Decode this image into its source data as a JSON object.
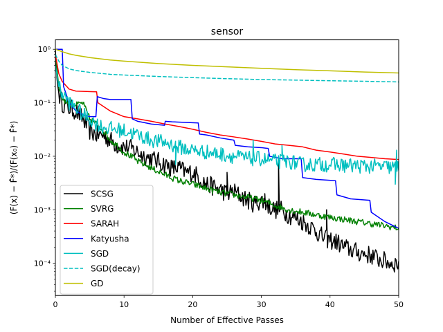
{
  "chart_data": {
    "type": "line",
    "title": "sensor",
    "xlabel": "Number of Effective Passes",
    "ylabel": "(F(x) − F̂*)/(F(x₀) − F̂*)",
    "xlim": [
      0,
      50
    ],
    "ylim": [
      2.5e-05,
      1.5
    ],
    "yscale": "log",
    "grid": false,
    "legend_position": "lower-left",
    "x_ticks": [
      0,
      10,
      20,
      30,
      40,
      50
    ],
    "x_tick_labels": [
      "0",
      "10",
      "20",
      "30",
      "40",
      "50"
    ],
    "y_ticks": [
      0.0001,
      0.001,
      0.01,
      0.1,
      1
    ],
    "y_tick_labels": [
      "10⁻⁴",
      "10⁻³",
      "10⁻²",
      "10⁻¹",
      "10⁰"
    ],
    "series": [
      {
        "name": "SCSG",
        "color": "#000000",
        "dash": "solid",
        "noise": 0.35,
        "points": [
          [
            0,
            1.0
          ],
          [
            0.2,
            0.3
          ],
          [
            0.5,
            0.15
          ],
          [
            1,
            0.1
          ],
          [
            2,
            0.08
          ],
          [
            3,
            0.07
          ],
          [
            4,
            0.05
          ],
          [
            5,
            0.03
          ],
          [
            6,
            0.025
          ],
          [
            7,
            0.025
          ],
          [
            8,
            0.02
          ],
          [
            9,
            0.016
          ],
          [
            10,
            0.015
          ],
          [
            11,
            0.014
          ],
          [
            12,
            0.012
          ],
          [
            13,
            0.01
          ],
          [
            14,
            0.009
          ],
          [
            15,
            0.008
          ],
          [
            16,
            0.007
          ],
          [
            17,
            0.006
          ],
          [
            18,
            0.006
          ],
          [
            19,
            0.005
          ],
          [
            20,
            0.005
          ],
          [
            21,
            0.004
          ],
          [
            22,
            0.003
          ],
          [
            23,
            0.0027
          ],
          [
            24,
            0.0024
          ],
          [
            25,
            0.002
          ],
          [
            26,
            0.0022
          ],
          [
            27,
            0.0018
          ],
          [
            28,
            0.0015
          ],
          [
            29,
            0.0013
          ],
          [
            30,
            0.0015
          ],
          [
            31,
            0.0012
          ],
          [
            32,
            0.001
          ],
          [
            33,
            0.001
          ],
          [
            34,
            0.0008
          ],
          [
            35,
            0.0007
          ],
          [
            36,
            0.0006
          ],
          [
            37,
            0.0005
          ],
          [
            38,
            0.0004
          ],
          [
            39,
            0.0003
          ],
          [
            40,
            0.00027
          ],
          [
            41,
            0.00025
          ],
          [
            42,
            0.0002
          ],
          [
            43,
            0.00018
          ],
          [
            44,
            0.00016
          ],
          [
            45,
            0.00015
          ],
          [
            46,
            0.00014
          ],
          [
            47,
            0.00012
          ],
          [
            48,
            0.00011
          ],
          [
            49,
            0.0001
          ],
          [
            50,
            0.0001
          ]
        ],
        "spikes": [
          [
            32.5,
            0.008
          ],
          [
            25,
            0.005
          ],
          [
            17,
            0.006
          ],
          [
            39.5,
            0.001
          ],
          [
            30.5,
            0.002
          ]
        ]
      },
      {
        "name": "SVRG",
        "color": "#008000",
        "dash": "solid",
        "noise": 0.12,
        "points": [
          [
            0,
            0.8
          ],
          [
            0.5,
            0.2
          ],
          [
            1,
            0.12
          ],
          [
            2,
            0.1
          ],
          [
            3,
            0.09
          ],
          [
            4,
            0.1
          ],
          [
            4.5,
            0.07
          ],
          [
            5,
            0.05
          ],
          [
            6,
            0.04
          ],
          [
            7,
            0.03
          ],
          [
            8,
            0.02
          ],
          [
            9,
            0.016
          ],
          [
            10,
            0.012
          ],
          [
            11,
            0.01
          ],
          [
            12,
            0.008
          ],
          [
            13,
            0.007
          ],
          [
            14,
            0.006
          ],
          [
            16,
            0.0045
          ],
          [
            18,
            0.0035
          ],
          [
            20,
            0.003
          ],
          [
            22,
            0.0025
          ],
          [
            24,
            0.0021
          ],
          [
            26,
            0.0019
          ],
          [
            28,
            0.0017
          ],
          [
            30,
            0.0015
          ],
          [
            32,
            0.0012
          ],
          [
            34,
            0.001
          ],
          [
            36,
            0.0009
          ],
          [
            38,
            0.0008
          ],
          [
            40,
            0.00072
          ],
          [
            42,
            0.00066
          ],
          [
            44,
            0.0006
          ],
          [
            46,
            0.00055
          ],
          [
            48,
            0.0005
          ],
          [
            50,
            0.00045
          ]
        ]
      },
      {
        "name": "SARAH",
        "color": "#ff0000",
        "dash": "solid",
        "noise": 0,
        "points": [
          [
            0,
            0.8
          ],
          [
            0.5,
            0.35
          ],
          [
            1,
            0.25
          ],
          [
            2,
            0.18
          ],
          [
            3,
            0.165
          ],
          [
            6,
            0.16
          ],
          [
            6.2,
            0.1
          ],
          [
            8,
            0.07
          ],
          [
            10,
            0.055
          ],
          [
            12,
            0.05
          ],
          [
            14,
            0.045
          ],
          [
            16,
            0.04
          ],
          [
            18,
            0.036
          ],
          [
            20,
            0.032
          ],
          [
            22,
            0.028
          ],
          [
            24,
            0.025
          ],
          [
            26,
            0.023
          ],
          [
            28,
            0.021
          ],
          [
            30,
            0.019
          ],
          [
            32,
            0.017
          ],
          [
            34,
            0.016
          ],
          [
            36,
            0.015
          ],
          [
            38,
            0.013
          ],
          [
            40,
            0.012
          ],
          [
            42,
            0.011
          ],
          [
            44,
            0.01
          ],
          [
            46,
            0.0095
          ],
          [
            48,
            0.009
          ],
          [
            50,
            0.0087
          ]
        ]
      },
      {
        "name": "Katyusha",
        "color": "#0000ff",
        "dash": "solid",
        "noise": 0,
        "points": [
          [
            0.1,
            1.0
          ],
          [
            1,
            1.0
          ],
          [
            1.2,
            0.2
          ],
          [
            2,
            0.1
          ],
          [
            3,
            0.07
          ],
          [
            4,
            0.06
          ],
          [
            5,
            0.055
          ],
          [
            5.9,
            0.055
          ],
          [
            6.1,
            0.13
          ],
          [
            7,
            0.12
          ],
          [
            8,
            0.115
          ],
          [
            9,
            0.115
          ],
          [
            11,
            0.115
          ],
          [
            11.2,
            0.05
          ],
          [
            12,
            0.045
          ],
          [
            14,
            0.04
          ],
          [
            15.9,
            0.038
          ],
          [
            16,
            0.045
          ],
          [
            17,
            0.044
          ],
          [
            20.8,
            0.042
          ],
          [
            21,
            0.026
          ],
          [
            22,
            0.025
          ],
          [
            24,
            0.022
          ],
          [
            26,
            0.02
          ],
          [
            26.2,
            0.016
          ],
          [
            28,
            0.015
          ],
          [
            30,
            0.0145
          ],
          [
            31,
            0.014
          ],
          [
            31.2,
            0.01
          ],
          [
            33,
            0.009
          ],
          [
            35.8,
            0.009
          ],
          [
            36,
            0.004
          ],
          [
            38,
            0.0037
          ],
          [
            40.8,
            0.0035
          ],
          [
            41,
            0.0019
          ],
          [
            43,
            0.0016
          ],
          [
            45.8,
            0.0015
          ],
          [
            46,
            0.0009
          ],
          [
            48,
            0.0006
          ],
          [
            50,
            0.00045
          ]
        ]
      },
      {
        "name": "SGD",
        "color": "#00bfbf",
        "dash": "solid",
        "noise": 0.28,
        "points": [
          [
            0,
            0.5
          ],
          [
            0.5,
            0.2
          ],
          [
            1,
            0.15
          ],
          [
            2,
            0.1
          ],
          [
            3,
            0.08
          ],
          [
            4,
            0.06
          ],
          [
            5,
            0.05
          ],
          [
            6,
            0.04
          ],
          [
            7,
            0.035
          ],
          [
            8,
            0.033
          ],
          [
            10,
            0.03
          ],
          [
            12,
            0.025
          ],
          [
            14,
            0.02
          ],
          [
            16,
            0.018
          ],
          [
            18,
            0.015
          ],
          [
            20,
            0.013
          ],
          [
            22,
            0.012
          ],
          [
            24,
            0.011
          ],
          [
            26,
            0.01
          ],
          [
            28,
            0.009
          ],
          [
            30,
            0.009
          ],
          [
            32,
            0.008
          ],
          [
            34,
            0.008
          ],
          [
            36,
            0.007
          ],
          [
            38,
            0.007
          ],
          [
            40,
            0.007
          ],
          [
            42,
            0.0068
          ],
          [
            44,
            0.0066
          ],
          [
            46,
            0.0065
          ],
          [
            48,
            0.0063
          ],
          [
            50,
            0.0062
          ]
        ],
        "spikes": [
          [
            49.5,
            0.003
          ],
          [
            49.7,
            0.013
          ],
          [
            28.8,
            0.02
          ],
          [
            33,
            0.016
          ],
          [
            19,
            0.011
          ],
          [
            17.5,
            0.007
          ]
        ]
      },
      {
        "name": "SGD(decay)",
        "color": "#00bfbf",
        "dash": "dashed",
        "noise": 0,
        "points": [
          [
            0,
            0.8
          ],
          [
            0.5,
            0.6
          ],
          [
            1,
            0.5
          ],
          [
            2,
            0.43
          ],
          [
            3,
            0.4
          ],
          [
            5,
            0.37
          ],
          [
            8,
            0.34
          ],
          [
            10,
            0.33
          ],
          [
            15,
            0.31
          ],
          [
            20,
            0.295
          ],
          [
            25,
            0.282
          ],
          [
            30,
            0.272
          ],
          [
            35,
            0.265
          ],
          [
            40,
            0.258
          ],
          [
            45,
            0.252
          ],
          [
            50,
            0.245
          ]
        ]
      },
      {
        "name": "GD",
        "color": "#bfbf00",
        "dash": "solid",
        "noise": 0,
        "points": [
          [
            0,
            1.0
          ],
          [
            1,
            0.9
          ],
          [
            2,
            0.82
          ],
          [
            3,
            0.77
          ],
          [
            5,
            0.7
          ],
          [
            8,
            0.63
          ],
          [
            10,
            0.6
          ],
          [
            15,
            0.54
          ],
          [
            20,
            0.5
          ],
          [
            25,
            0.47
          ],
          [
            30,
            0.44
          ],
          [
            35,
            0.415
          ],
          [
            40,
            0.395
          ],
          [
            45,
            0.375
          ],
          [
            50,
            0.36
          ]
        ]
      }
    ]
  }
}
